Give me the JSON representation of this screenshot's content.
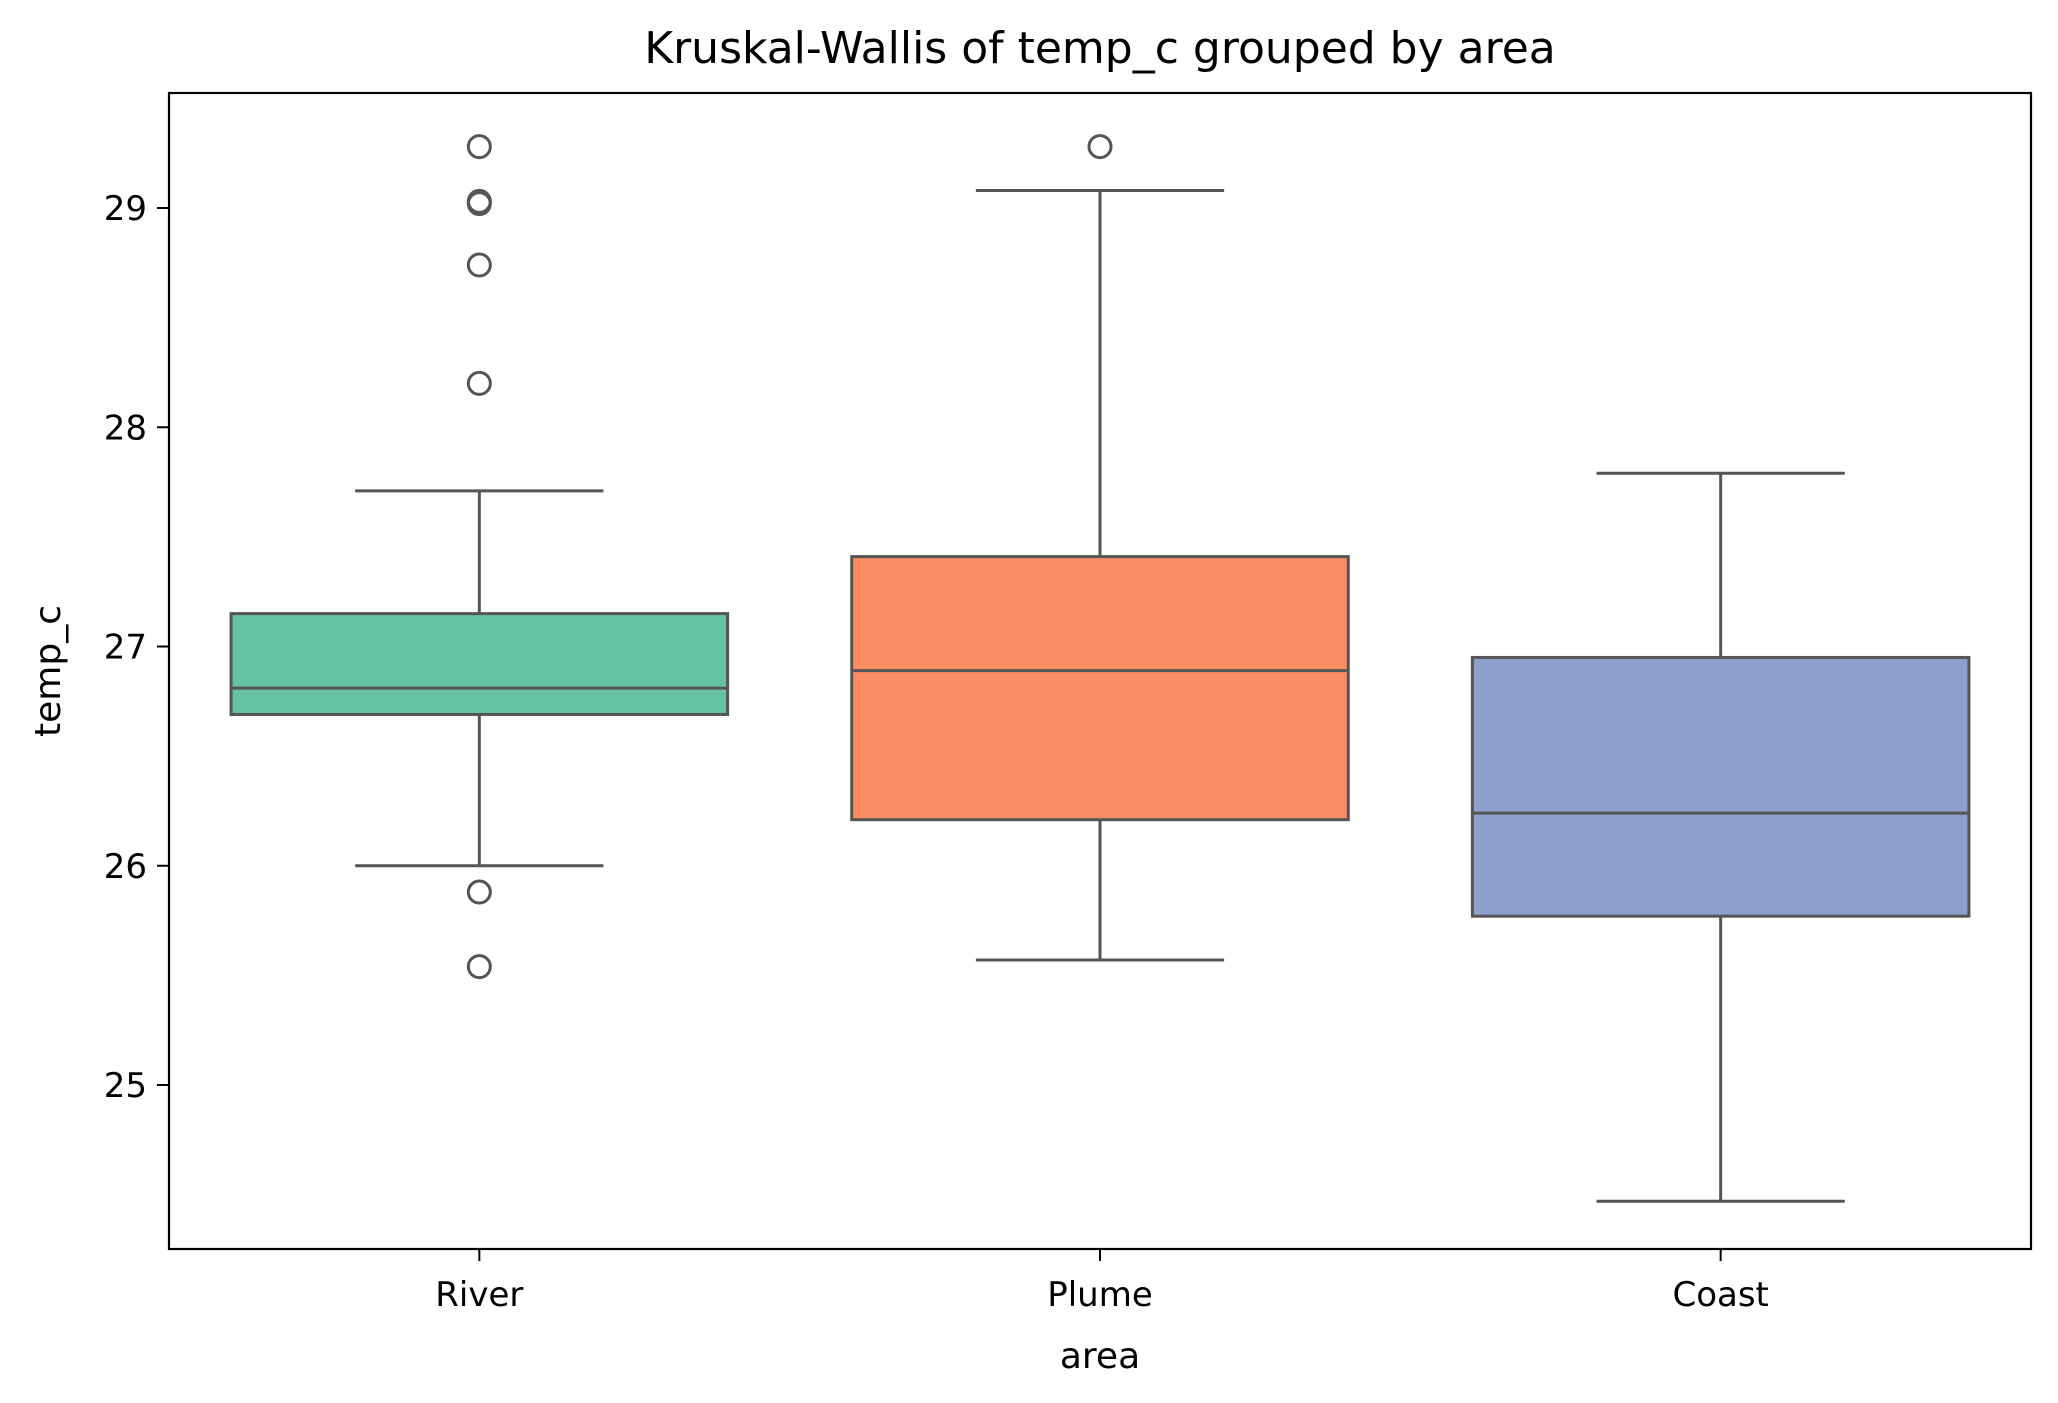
{
  "chart_data": {
    "type": "box",
    "title": "Kruskal-Wallis of temp_c grouped by area",
    "xlabel": "area",
    "ylabel": "temp_c",
    "ylim": [
      24.2,
      29.5
    ],
    "yticks": [
      25,
      26,
      27,
      28,
      29
    ],
    "categories": [
      "River",
      "Plume",
      "Coast"
    ],
    "boxes": [
      {
        "category": "River",
        "whislo": 26.0,
        "q1": 26.69,
        "med": 26.81,
        "q3": 27.15,
        "whishi": 27.71,
        "fliers": [
          29.28,
          29.02,
          29.03,
          28.74,
          28.2,
          25.88,
          25.54
        ],
        "color": "#66c2a5"
      },
      {
        "category": "Plume",
        "whislo": 25.57,
        "q1": 26.21,
        "med": 26.89,
        "q3": 27.41,
        "whishi": 29.08,
        "fliers": [
          29.28
        ],
        "color": "#fc8d62"
      },
      {
        "category": "Coast",
        "whislo": 24.47,
        "q1": 25.77,
        "med": 26.24,
        "q3": 26.95,
        "whishi": 27.79,
        "fliers": [],
        "color": "#8da0cb"
      }
    ],
    "grid": false,
    "legend": "none"
  }
}
